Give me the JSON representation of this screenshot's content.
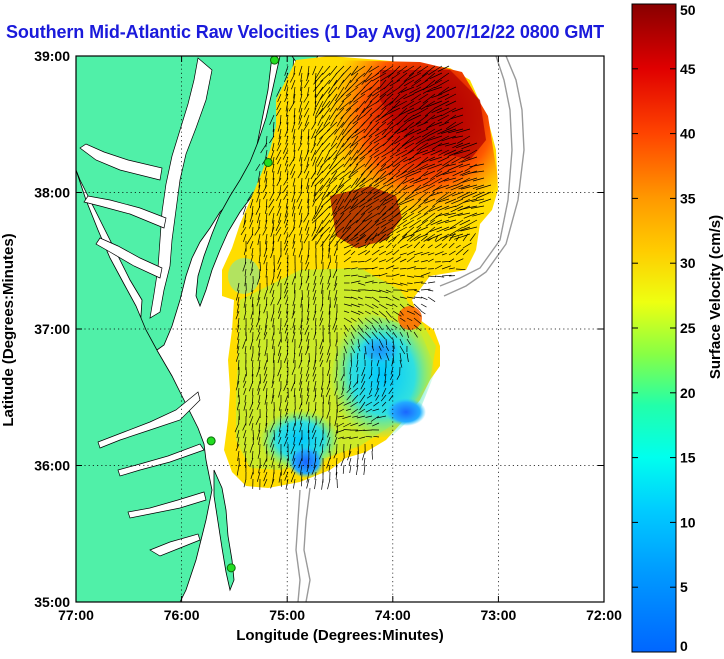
{
  "title": "Southern Mid-Atlantic Raw Velocities (1 Day Avg) 2007/12/22 0800 GMT",
  "map": {
    "xlabel": "Longitude (Degrees:Minutes)",
    "ylabel": "Latitude (Degrees:Minutes)",
    "xlim": [
      -77,
      -72
    ],
    "ylim": [
      35,
      39
    ],
    "xticks": [
      "77:00",
      "76:00",
      "75:00",
      "74:00",
      "73:00",
      "72:00"
    ],
    "yticks": [
      "35:00",
      "36:00",
      "37:00",
      "38:00",
      "39:00"
    ],
    "grid": "dotted",
    "colors": {
      "land": "#50f0a8",
      "water": "#ffffff",
      "coast": "#000000",
      "bathymetry": "#9a9a9a",
      "vector": "#000000",
      "site_marker": "#22dd22"
    },
    "hf_radar_sites": [
      {
        "lon": -75.12,
        "lat": 38.97
      },
      {
        "lon": -75.18,
        "lat": 38.22
      },
      {
        "lon": -75.72,
        "lat": 36.18
      },
      {
        "lon": -75.53,
        "lat": 35.25
      }
    ]
  },
  "colorbar": {
    "label": "Surface Velocity (cm/s)",
    "min": 0,
    "max": 50,
    "ticks": [
      "0",
      "5",
      "10",
      "15",
      "20",
      "25",
      "30",
      "35",
      "40",
      "45",
      "50"
    ],
    "colormap": "jet"
  }
}
